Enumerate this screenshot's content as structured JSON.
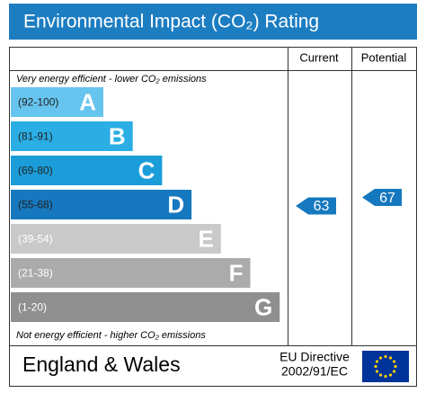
{
  "chart_data": {
    "type": "rating",
    "title": "Environmental Impact (CO₂) Rating",
    "columns": [
      "Current",
      "Potential"
    ],
    "top_note": "Very energy efficient - lower CO₂ emissions",
    "bottom_note": "Not energy efficient - higher CO₂ emissions",
    "bands": [
      {
        "range": "(92-100)",
        "letter": "A",
        "color": "#66c4ee"
      },
      {
        "range": "(81-91)",
        "letter": "B",
        "color": "#2aaee4"
      },
      {
        "range": "(69-80)",
        "letter": "C",
        "color": "#1b9dd9"
      },
      {
        "range": "(55-68)",
        "letter": "D",
        "color": "#1678be"
      },
      {
        "range": "(39-54)",
        "letter": "E",
        "color": "#c9c9c9"
      },
      {
        "range": "(21-38)",
        "letter": "F",
        "color": "#ababab"
      },
      {
        "range": "(1-20)",
        "letter": "G",
        "color": "#8f8f8f"
      }
    ],
    "current": 63,
    "potential": 67,
    "region": "England & Wales",
    "directive": [
      "EU Directive",
      "2002/91/EC"
    ]
  }
}
